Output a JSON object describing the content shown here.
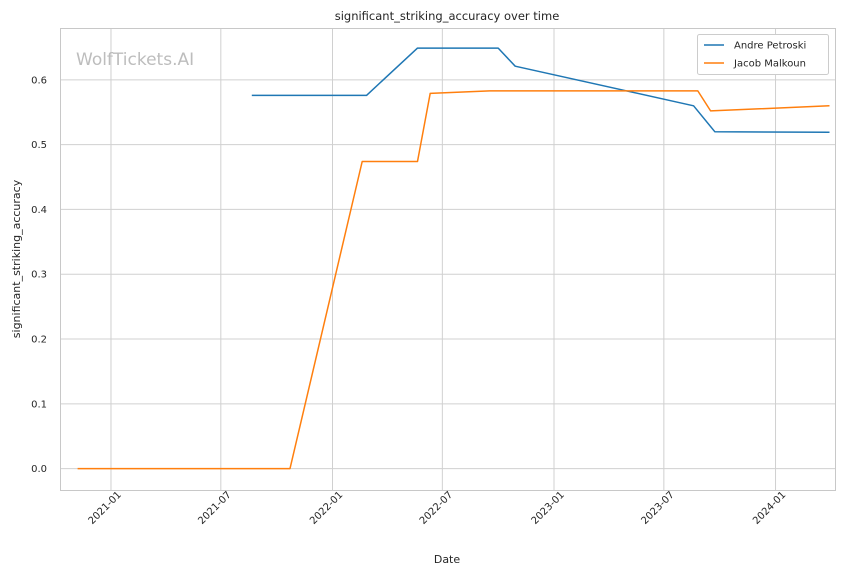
{
  "chart_data": {
    "type": "line",
    "title": "significant_striking_accuracy over time",
    "xlabel": "Date",
    "ylabel": "significant_striking_accuracy",
    "watermark": "WolfTickets.AI",
    "grid": true,
    "legend_position": "top-right",
    "xlim": [
      "2020-10-09",
      "2024-04-08"
    ],
    "ylim": [
      -0.033,
      0.68
    ],
    "x_ticks": [
      "2021-01",
      "2021-07",
      "2022-01",
      "2022-07",
      "2023-01",
      "2023-07",
      "2024-01"
    ],
    "y_ticks": [
      "0.0",
      "0.1",
      "0.2",
      "0.3",
      "0.4",
      "0.5",
      "0.6"
    ],
    "series": [
      {
        "name": "Andre Petroski",
        "color": "#1f77b4",
        "x": [
          "2021-08-21",
          "2022-02-26",
          "2022-05-21",
          "2022-10-01",
          "2022-10-29",
          "2023-08-19",
          "2023-09-23",
          "2024-03-30"
        ],
        "y": [
          0.576,
          0.576,
          0.649,
          0.649,
          0.621,
          0.56,
          0.52,
          0.519
        ]
      },
      {
        "name": "Jacob Malkoun",
        "color": "#ff7f0e",
        "x": [
          "2020-11-07",
          "2021-10-23",
          "2022-02-19",
          "2022-05-21",
          "2022-06-11",
          "2022-09-17",
          "2023-08-26",
          "2023-09-16",
          "2024-03-30"
        ],
        "y": [
          0.0,
          0.0,
          0.474,
          0.474,
          0.579,
          0.583,
          0.583,
          0.552,
          0.56
        ]
      }
    ]
  }
}
